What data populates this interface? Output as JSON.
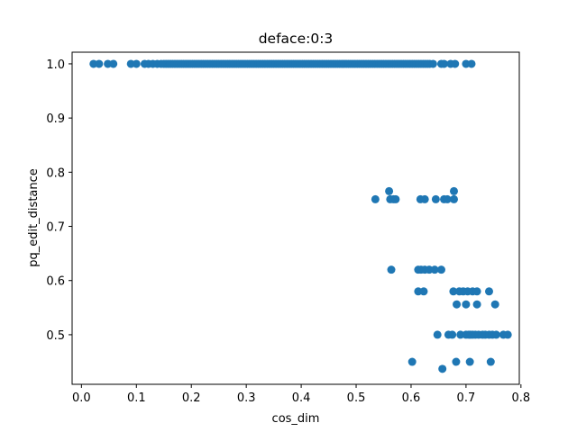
{
  "chart_data": {
    "type": "scatter",
    "title": "deface:0:3",
    "xlabel": "cos_dim",
    "ylabel": "pq_edit_distance",
    "xlim": [
      -0.017,
      0.797
    ],
    "ylim": [
      0.4085,
      1.0215
    ],
    "xticks": [
      0.0,
      0.1,
      0.2,
      0.3,
      0.4,
      0.5,
      0.6,
      0.7,
      0.8
    ],
    "xtick_labels": [
      "0.0",
      "0.1",
      "0.2",
      "0.3",
      "0.4",
      "0.5",
      "0.6",
      "0.7",
      "0.8"
    ],
    "yticks": [
      0.5,
      0.6,
      0.7,
      0.8,
      0.9,
      1.0
    ],
    "ytick_labels": [
      "0.5",
      "0.6",
      "0.7",
      "0.8",
      "0.9",
      "1.0"
    ],
    "grid": false,
    "marker_color": "#1f77b4",
    "series": [
      {
        "dense_range_at_1": {
          "y": 1.0,
          "x_from": 0.15,
          "x_to": 0.635,
          "step": 0.004
        },
        "points": [
          [
            0.022,
            1.0
          ],
          [
            0.032,
            1.0
          ],
          [
            0.048,
            1.0
          ],
          [
            0.058,
            1.0
          ],
          [
            0.09,
            1.0
          ],
          [
            0.1,
            1.0
          ],
          [
            0.115,
            1.0
          ],
          [
            0.122,
            1.0
          ],
          [
            0.13,
            1.0
          ],
          [
            0.138,
            1.0
          ],
          [
            0.145,
            1.0
          ],
          [
            0.64,
            1.0
          ],
          [
            0.655,
            1.0
          ],
          [
            0.66,
            1.0
          ],
          [
            0.672,
            1.0
          ],
          [
            0.68,
            1.0
          ],
          [
            0.7,
            1.0
          ],
          [
            0.71,
            1.0
          ],
          [
            0.535,
            0.75
          ],
          [
            0.56,
            0.765
          ],
          [
            0.562,
            0.75
          ],
          [
            0.568,
            0.75
          ],
          [
            0.572,
            0.75
          ],
          [
            0.617,
            0.75
          ],
          [
            0.625,
            0.75
          ],
          [
            0.645,
            0.75
          ],
          [
            0.66,
            0.75
          ],
          [
            0.666,
            0.75
          ],
          [
            0.678,
            0.765
          ],
          [
            0.678,
            0.75
          ],
          [
            0.564,
            0.62
          ],
          [
            0.613,
            0.62
          ],
          [
            0.618,
            0.62
          ],
          [
            0.625,
            0.62
          ],
          [
            0.633,
            0.62
          ],
          [
            0.643,
            0.62
          ],
          [
            0.655,
            0.62
          ],
          [
            0.613,
            0.58
          ],
          [
            0.623,
            0.58
          ],
          [
            0.677,
            0.58
          ],
          [
            0.688,
            0.58
          ],
          [
            0.695,
            0.58
          ],
          [
            0.703,
            0.58
          ],
          [
            0.712,
            0.58
          ],
          [
            0.72,
            0.58
          ],
          [
            0.742,
            0.58
          ],
          [
            0.683,
            0.556
          ],
          [
            0.7,
            0.556
          ],
          [
            0.72,
            0.556
          ],
          [
            0.753,
            0.556
          ],
          [
            0.648,
            0.5
          ],
          [
            0.668,
            0.5
          ],
          [
            0.675,
            0.5
          ],
          [
            0.69,
            0.5
          ],
          [
            0.7,
            0.5
          ],
          [
            0.705,
            0.5
          ],
          [
            0.708,
            0.5
          ],
          [
            0.712,
            0.5
          ],
          [
            0.717,
            0.5
          ],
          [
            0.723,
            0.5
          ],
          [
            0.73,
            0.5
          ],
          [
            0.735,
            0.5
          ],
          [
            0.742,
            0.5
          ],
          [
            0.748,
            0.5
          ],
          [
            0.755,
            0.5
          ],
          [
            0.768,
            0.5
          ],
          [
            0.776,
            0.5
          ],
          [
            0.602,
            0.45
          ],
          [
            0.682,
            0.45
          ],
          [
            0.707,
            0.45
          ],
          [
            0.745,
            0.45
          ],
          [
            0.657,
            0.437
          ]
        ]
      }
    ]
  }
}
